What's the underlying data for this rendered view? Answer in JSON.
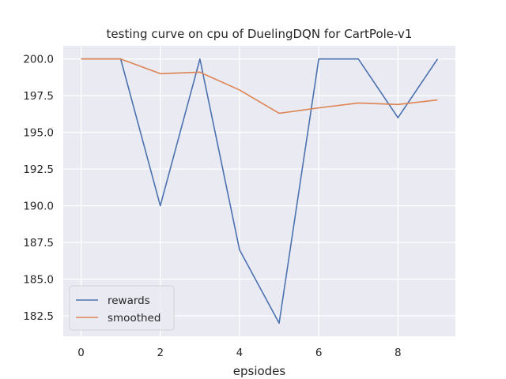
{
  "chart_data": {
    "type": "line",
    "title": "testing curve on cpu of DuelingDQN for CartPole-v1",
    "xlabel": "epsiodes",
    "ylabel": "",
    "x": [
      0,
      1,
      2,
      3,
      4,
      5,
      6,
      7,
      8,
      9
    ],
    "xlim": [
      -0.45,
      9.45
    ],
    "ylim": [
      181.1,
      200.9
    ],
    "xticks": [
      0,
      2,
      4,
      6,
      8
    ],
    "yticks": [
      182.5,
      185.0,
      187.5,
      190.0,
      192.5,
      195.0,
      197.5,
      200.0
    ],
    "xtick_labels": [
      "0",
      "2",
      "4",
      "6",
      "8"
    ],
    "ytick_labels": [
      "182.5",
      "185.0",
      "187.5",
      "190.0",
      "192.5",
      "195.0",
      "197.5",
      "200.0"
    ],
    "grid": true,
    "legend_position": "lower-left",
    "series": [
      {
        "name": "rewards",
        "color": "#4c72b0",
        "values": [
          200,
          200,
          190,
          200,
          187,
          182,
          200,
          200,
          196,
          200
        ]
      },
      {
        "name": "smoothed",
        "color": "#dd8452",
        "values": [
          200,
          200,
          199.0,
          199.1,
          197.89,
          196.3,
          196.67,
          197.0,
          196.9,
          197.21
        ]
      }
    ]
  },
  "colors": {
    "plot_background": "#eaeaf2",
    "grid": "#ffffff"
  }
}
